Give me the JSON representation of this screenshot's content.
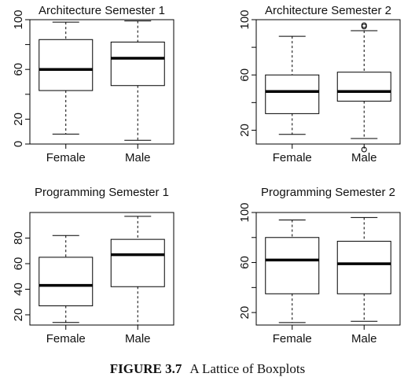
{
  "caption": {
    "label": "FIGURE 3.7",
    "text": "A Lattice of Boxplots"
  },
  "chart_data": [
    {
      "type": "boxplot",
      "title": "Architecture Semester 1",
      "categories": [
        "Female",
        "Male"
      ],
      "ylim": [
        0,
        100
      ],
      "yticks": [
        0,
        20,
        40,
        60,
        80,
        100
      ],
      "ytick_labels": [
        "0",
        "20",
        "",
        "60",
        "",
        "100"
      ],
      "boxes": [
        {
          "name": "Female",
          "whisker_low": 8,
          "q1": 43,
          "median": 60,
          "q3": 84,
          "whisker_high": 98,
          "outliers": []
        },
        {
          "name": "Male",
          "whisker_low": 3,
          "q1": 47,
          "median": 69,
          "q3": 82,
          "whisker_high": 99,
          "outliers": []
        }
      ]
    },
    {
      "type": "boxplot",
      "title": "Architecture Semester 2",
      "categories": [
        "Female",
        "Male"
      ],
      "ylim": [
        10,
        100
      ],
      "yticks": [
        20,
        40,
        60,
        80,
        100
      ],
      "ytick_labels": [
        "20",
        "",
        "60",
        "",
        "100"
      ],
      "boxes": [
        {
          "name": "Female",
          "whisker_low": 17,
          "q1": 32,
          "median": 48,
          "q3": 60,
          "whisker_high": 88,
          "outliers": []
        },
        {
          "name": "Male",
          "whisker_low": 14,
          "q1": 41,
          "median": 48,
          "q3": 62,
          "whisker_high": 92,
          "outliers": [
            96,
            95,
            6
          ]
        }
      ]
    },
    {
      "type": "boxplot",
      "title": "Programming Semester 1",
      "categories": [
        "Female",
        "Male"
      ],
      "ylim": [
        12,
        100
      ],
      "yticks": [
        20,
        40,
        60,
        80
      ],
      "ytick_labels": [
        "20",
        "40",
        "60",
        "80"
      ],
      "boxes": [
        {
          "name": "Female",
          "whisker_low": 14,
          "q1": 27,
          "median": 43,
          "q3": 65,
          "whisker_high": 82,
          "outliers": []
        },
        {
          "name": "Male",
          "whisker_low": 12,
          "q1": 42,
          "median": 67,
          "q3": 79,
          "whisker_high": 97,
          "outliers": []
        }
      ]
    },
    {
      "type": "boxplot",
      "title": "Programming Semester 2",
      "categories": [
        "Female",
        "Male"
      ],
      "ylim": [
        10,
        100
      ],
      "yticks": [
        20,
        40,
        60,
        80,
        100
      ],
      "ytick_labels": [
        "20",
        "",
        "60",
        "",
        "100"
      ],
      "boxes": [
        {
          "name": "Female",
          "whisker_low": 12,
          "q1": 35,
          "median": 62,
          "q3": 80,
          "whisker_high": 94,
          "outliers": []
        },
        {
          "name": "Male",
          "whisker_low": 13,
          "q1": 35,
          "median": 59,
          "q3": 77,
          "whisker_high": 96,
          "outliers": []
        }
      ]
    }
  ]
}
